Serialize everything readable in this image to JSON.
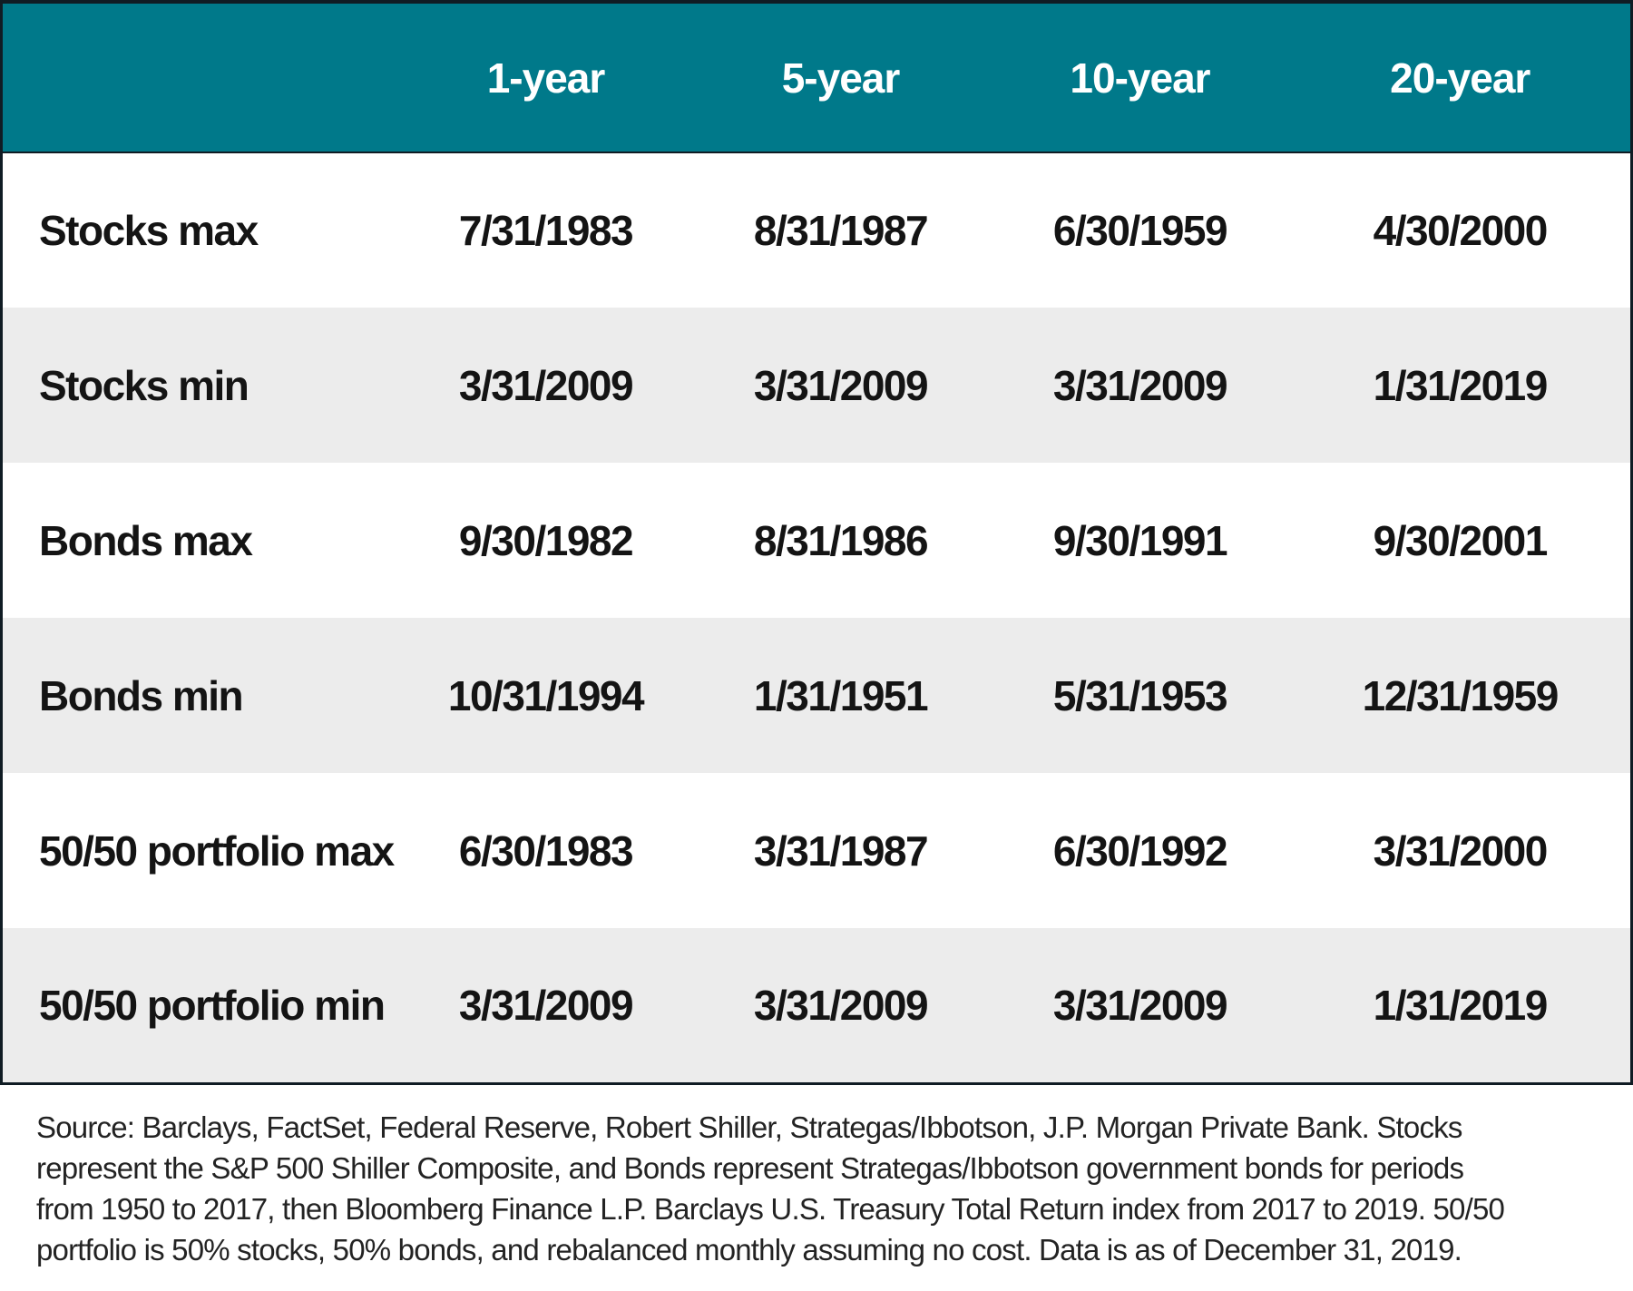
{
  "colors": {
    "header_bg": "#00798A",
    "header_text": "#FFFFFF",
    "row_bg": "#FFFFFF",
    "row_alt_bg": "#ECECEC",
    "border": "#101C24",
    "cell_text": "#141414",
    "footer_text": "#232323"
  },
  "chart_data": {
    "type": "table",
    "title": "",
    "columns": [
      "",
      "1-year",
      "5-year",
      "10-year",
      "20-year"
    ],
    "rows": [
      {
        "label": "Stocks max",
        "values": [
          "7/31/1983",
          "8/31/1987",
          "6/30/1959",
          "4/30/2000"
        ]
      },
      {
        "label": "Stocks min",
        "values": [
          "3/31/2009",
          "3/31/2009",
          "3/31/2009",
          "1/31/2019"
        ]
      },
      {
        "label": "Bonds max",
        "values": [
          "9/30/1982",
          "8/31/1986",
          "9/30/1991",
          "9/30/2001"
        ]
      },
      {
        "label": "Bonds min",
        "values": [
          "10/31/1994",
          "1/31/1951",
          "5/31/1953",
          "12/31/1959"
        ]
      },
      {
        "label": "50/50 portfolio max",
        "values": [
          "6/30/1983",
          "3/31/1987",
          "6/30/1992",
          "3/31/2000"
        ]
      },
      {
        "label": "50/50 portfolio min",
        "values": [
          "3/31/2009",
          "3/31/2009",
          "3/31/2009",
          "1/31/2019"
        ]
      }
    ],
    "layout_hints": {
      "striped_rows": true,
      "header_position": "top",
      "grid": "off"
    }
  },
  "footer": {
    "source_lines": [
      "Source: Barclays, FactSet, Federal Reserve, Robert Shiller, Strategas/Ibbotson, J.P. Morgan Private Bank. Stocks",
      "represent the S&P 500 Shiller Composite, and Bonds represent Strategas/Ibbotson government bonds for periods",
      "from 1950 to 2017, then Bloomberg Finance L.P. Barclays U.S. Treasury Total Return index from 2017 to 2019. 50/50",
      "portfolio is 50% stocks, 50% bonds, and rebalanced monthly assuming no cost. Data is as of December 31, 2019."
    ]
  }
}
